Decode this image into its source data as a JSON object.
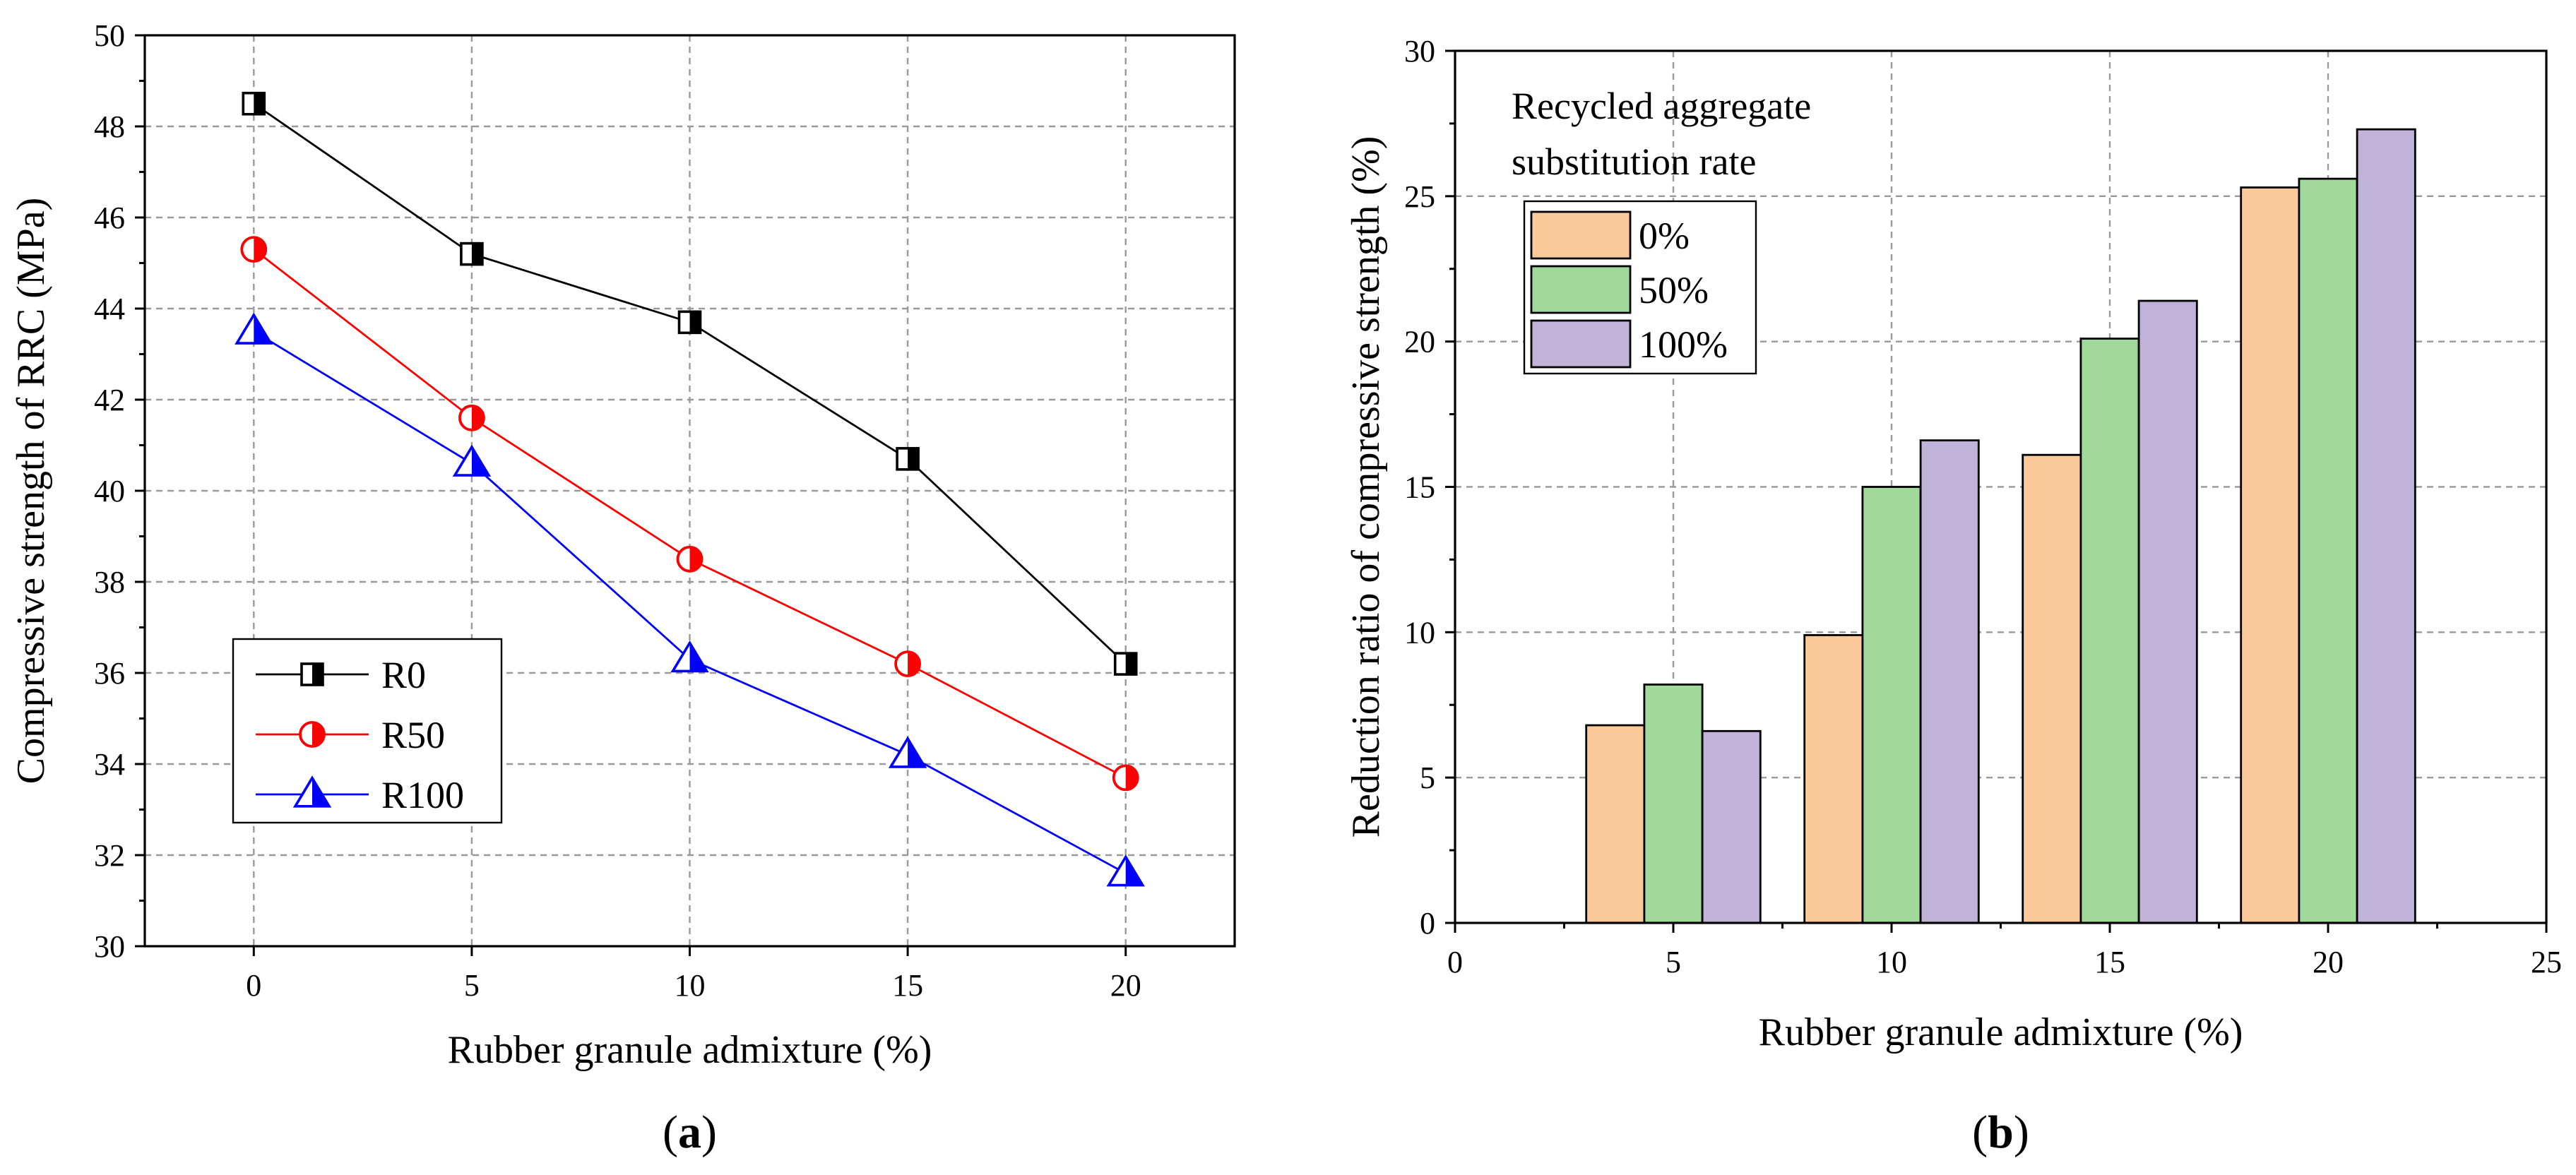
{
  "chart_data": [
    {
      "type": "line",
      "xlabel": "Rubber granule admixture (%)",
      "ylabel": "Compressive strength of RRC (MPa)",
      "xlim": [
        -2.5,
        22.5
      ],
      "ylim": [
        30,
        50
      ],
      "xticks": [
        0,
        5,
        10,
        15,
        20
      ],
      "yticks": [
        30,
        32,
        34,
        36,
        38,
        40,
        42,
        44,
        46,
        48,
        50
      ],
      "x": [
        0,
        5,
        10,
        15,
        20
      ],
      "series": [
        {
          "name": "R0",
          "values": [
            48.5,
            45.2,
            43.7,
            40.7,
            36.2
          ],
          "color": "#000000",
          "marker": "half-square"
        },
        {
          "name": "R50",
          "values": [
            45.3,
            41.6,
            38.5,
            36.2,
            33.7
          ],
          "color": "#ff0000",
          "marker": "half-circle"
        },
        {
          "name": "R100",
          "values": [
            43.5,
            40.6,
            36.3,
            34.2,
            31.6
          ],
          "color": "#0000ff",
          "marker": "half-triangle"
        }
      ],
      "legend": "bottom-left",
      "grid": true,
      "caption": {
        "open": "(",
        "letter": "a",
        "close": ")"
      }
    },
    {
      "type": "bar",
      "xlabel": "Rubber granule admixture (%)",
      "ylabel": "Reduction ratio of compressive strength (%)",
      "xlim": [
        0,
        25
      ],
      "ylim": [
        0,
        30
      ],
      "xticks": [
        0,
        5,
        10,
        15,
        20,
        25
      ],
      "yticks": [
        0,
        5,
        10,
        15,
        20,
        25,
        30
      ],
      "categories": [
        5,
        10,
        15,
        20
      ],
      "bar_width": 1.33,
      "series": [
        {
          "name": "0%",
          "values": [
            6.8,
            9.9,
            16.1,
            25.3
          ],
          "color": "#fbc99a"
        },
        {
          "name": "50%",
          "values": [
            8.2,
            15.0,
            20.1,
            25.6
          ],
          "color": "#a0d99a"
        },
        {
          "name": "100%",
          "values": [
            6.6,
            16.6,
            21.4,
            27.3
          ],
          "color": "#c0b2d9"
        }
      ],
      "legend": "top-left",
      "legend_title": [
        "Recycled aggregate",
        "substitution rate"
      ],
      "grid": true,
      "caption": {
        "open": "(",
        "letter": "b",
        "close": ")"
      }
    }
  ]
}
